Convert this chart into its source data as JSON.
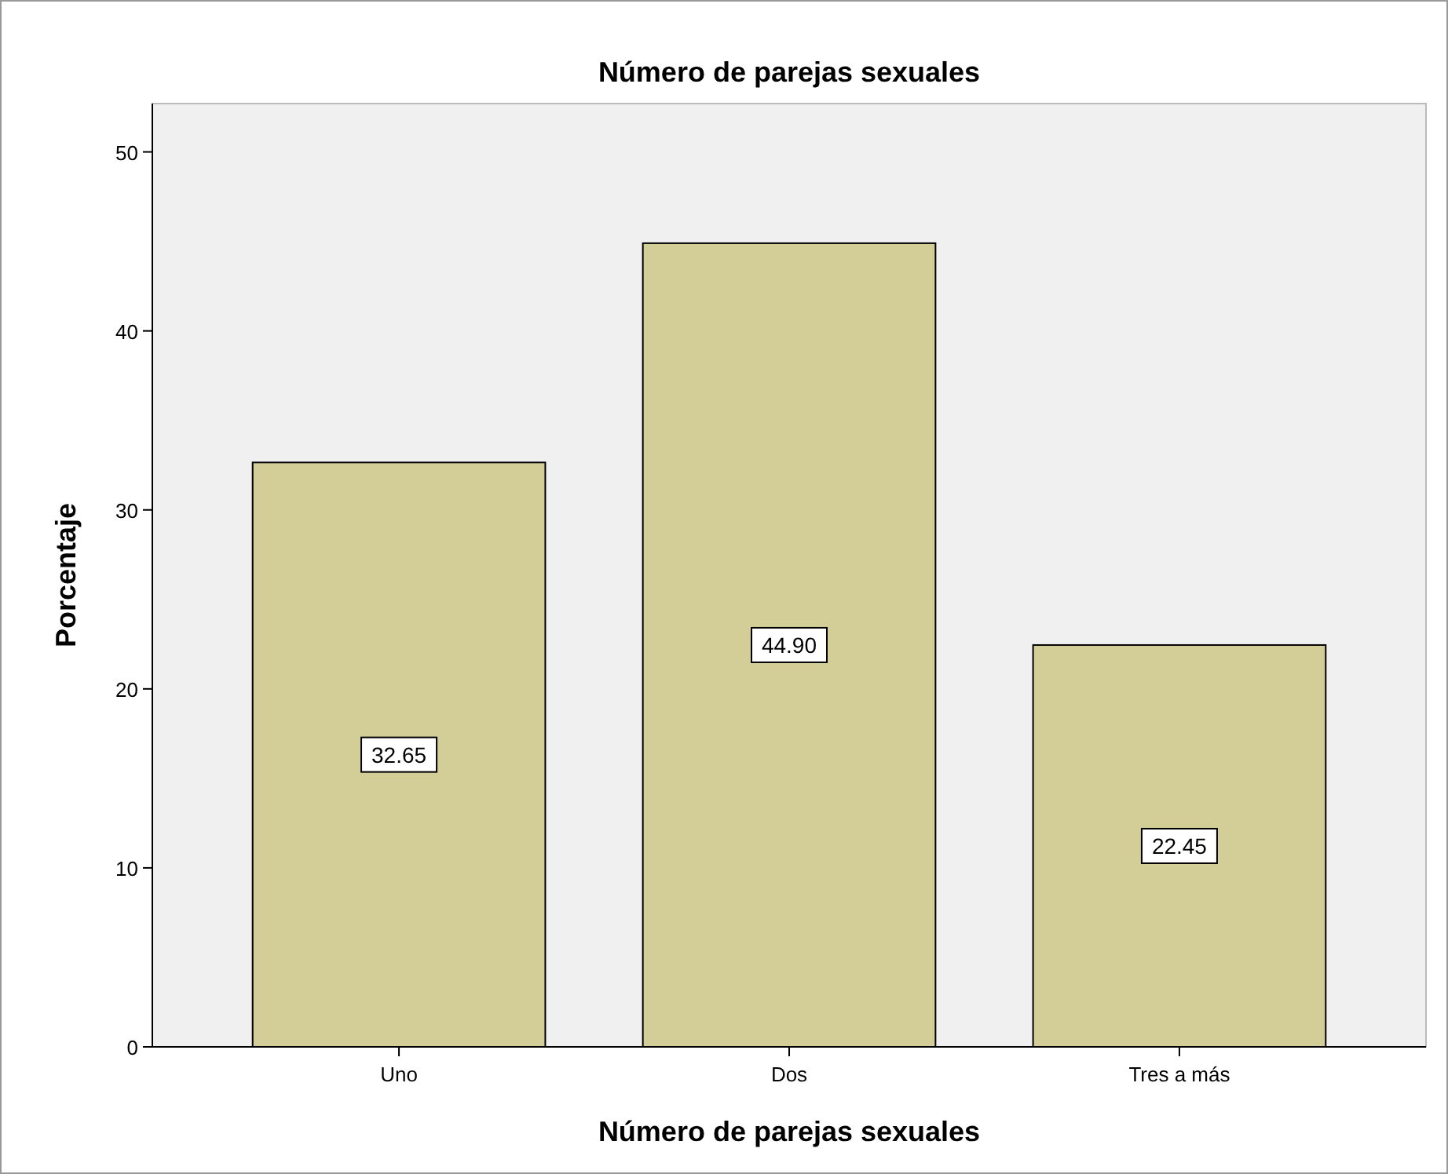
{
  "chart_data": {
    "type": "bar",
    "title": "Número de parejas sexuales",
    "xlabel": "Número de parejas sexuales",
    "ylabel": "Porcentaje",
    "categories": [
      "Uno",
      "Dos",
      "Tres a más"
    ],
    "values": [
      32.65,
      44.9,
      22.45
    ],
    "value_labels": [
      "32.65",
      "44.90",
      "22.45"
    ],
    "color": "#d3ce97",
    "ylim": [
      0,
      52.7
    ],
    "yticks": [
      0,
      10,
      20,
      30,
      40,
      50
    ]
  }
}
